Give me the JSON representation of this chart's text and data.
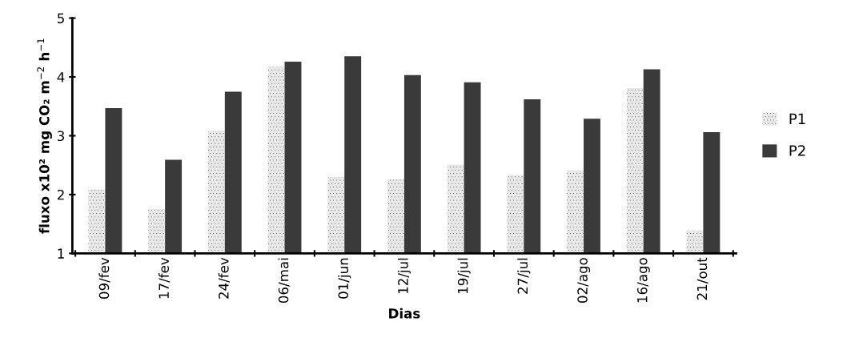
{
  "chart_data": {
    "type": "bar",
    "xlabel": "Dias",
    "ylabel": "fluxo x10² mg CO₂ m$^{−2}$ h$^{−1}$",
    "categories": [
      "09/fev",
      "17/fev",
      "24/fev",
      "06/mai",
      "01/jun",
      "12/jul",
      "19/jul",
      "27/jul",
      "02/ago",
      "16/ago",
      "21/out"
    ],
    "series": [
      {
        "name": "P1",
        "color": "#e8e8e8",
        "values": [
          2.08,
          1.75,
          3.09,
          4.17,
          2.3,
          2.26,
          2.51,
          2.33,
          2.41,
          3.81,
          1.39
        ]
      },
      {
        "name": "P2",
        "color": "#3a3a3a",
        "values": [
          3.47,
          2.59,
          3.75,
          4.26,
          4.35,
          4.03,
          3.91,
          3.62,
          3.29,
          4.13,
          3.06
        ]
      }
    ],
    "ylim": [
      1,
      5
    ],
    "yticks": [
      1,
      2,
      3,
      4,
      5
    ],
    "grid": false,
    "legend": "right"
  }
}
